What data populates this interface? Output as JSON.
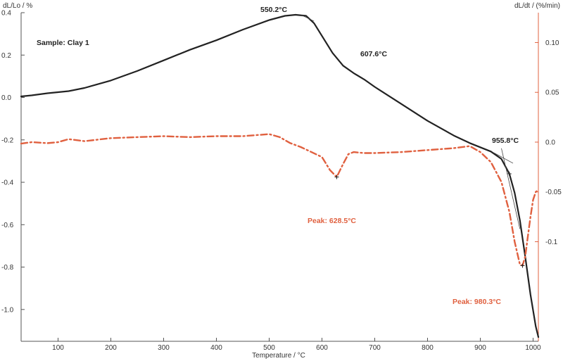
{
  "chart_data": {
    "type": "line",
    "title": "",
    "xlabel": "Temperature / °C",
    "ylabel_left": "dL/Lo / %",
    "ylabel_right": "dL/dt / (%/min)",
    "xlim": [
      30,
      1010
    ],
    "ylim_left": [
      -1.15,
      0.4
    ],
    "ylim_right": [
      -0.2,
      0.13
    ],
    "x_ticks": [
      100,
      200,
      300,
      400,
      500,
      600,
      700,
      800,
      900,
      1000
    ],
    "y_left_ticks": [
      0.4,
      0.2,
      0.0,
      -0.2,
      -0.4,
      -0.6,
      -0.8,
      -1.0
    ],
    "y_left_tick_labels": [
      "0.4",
      "0.2",
      "0.0",
      "-0.2",
      "-0.4",
      "-0.6",
      "-0.8",
      "-1.0"
    ],
    "y_right_ticks": [
      0.1,
      0.05,
      0.0,
      -0.05,
      -0.1
    ],
    "y_right_tick_labels": [
      "0.10",
      "0.05",
      "0.0",
      "-0.05",
      "-0.1"
    ],
    "grid": false,
    "colors": {
      "dL_Lo": "#222222",
      "dL_dt": "#e0603f"
    },
    "sample_label": "Sample: Clay 1",
    "series": [
      {
        "key": "dL_Lo",
        "axis": "left",
        "style": "solid",
        "x": [
          30,
          50,
          80,
          100,
          120,
          150,
          200,
          250,
          300,
          350,
          400,
          450,
          500,
          530,
          550,
          570,
          585,
          600,
          620,
          640,
          660,
          680,
          700,
          750,
          800,
          850,
          880,
          900,
          920,
          940,
          955,
          965,
          975,
          985,
          995,
          1005,
          1010
        ],
        "y": [
          0.005,
          0.01,
          0.02,
          0.025,
          0.03,
          0.045,
          0.08,
          0.125,
          0.175,
          0.225,
          0.27,
          0.32,
          0.365,
          0.385,
          0.39,
          0.385,
          0.35,
          0.29,
          0.21,
          0.15,
          0.115,
          0.085,
          0.05,
          -0.03,
          -0.11,
          -0.18,
          -0.215,
          -0.235,
          -0.255,
          -0.29,
          -0.36,
          -0.45,
          -0.58,
          -0.75,
          -0.93,
          -1.08,
          -1.13
        ]
      },
      {
        "key": "dL_dt",
        "axis": "right",
        "style": "dash-dot",
        "x": [
          30,
          50,
          80,
          100,
          120,
          150,
          200,
          250,
          300,
          350,
          400,
          450,
          500,
          520,
          540,
          560,
          580,
          600,
          615,
          628,
          640,
          650,
          660,
          680,
          700,
          750,
          800,
          850,
          880,
          900,
          920,
          940,
          955,
          965,
          975,
          980,
          985,
          990,
          995,
          1000,
          1005,
          1010
        ],
        "y": [
          -0.0015,
          0.0,
          -0.001,
          0.0,
          0.003,
          0.001,
          0.004,
          0.005,
          0.006,
          0.005,
          0.006,
          0.006,
          0.008,
          0.005,
          -0.001,
          -0.005,
          -0.01,
          -0.015,
          -0.028,
          -0.035,
          -0.022,
          -0.012,
          -0.01,
          -0.011,
          -0.011,
          -0.01,
          -0.008,
          -0.006,
          -0.004,
          -0.01,
          -0.02,
          -0.04,
          -0.07,
          -0.1,
          -0.123,
          -0.124,
          -0.115,
          -0.095,
          -0.075,
          -0.058,
          -0.05,
          -0.048
        ]
      }
    ],
    "annotations": [
      {
        "text": "550.2°C",
        "axis": "left",
        "x": 550,
        "y": 0.39,
        "color": "black"
      },
      {
        "text": "607.6°C",
        "axis": "left",
        "x": 607,
        "y": 0.2,
        "color": "black"
      },
      {
        "text": "955.8°C",
        "axis": "left",
        "x": 955,
        "y": -0.25,
        "color": "black"
      },
      {
        "text": "Peak: 628.5°C",
        "axis": "right",
        "x": 628,
        "y": -0.035,
        "color": "red"
      },
      {
        "text": "Peak: 980.3°C",
        "axis": "right",
        "x": 980,
        "y": -0.124,
        "color": "red"
      }
    ]
  }
}
